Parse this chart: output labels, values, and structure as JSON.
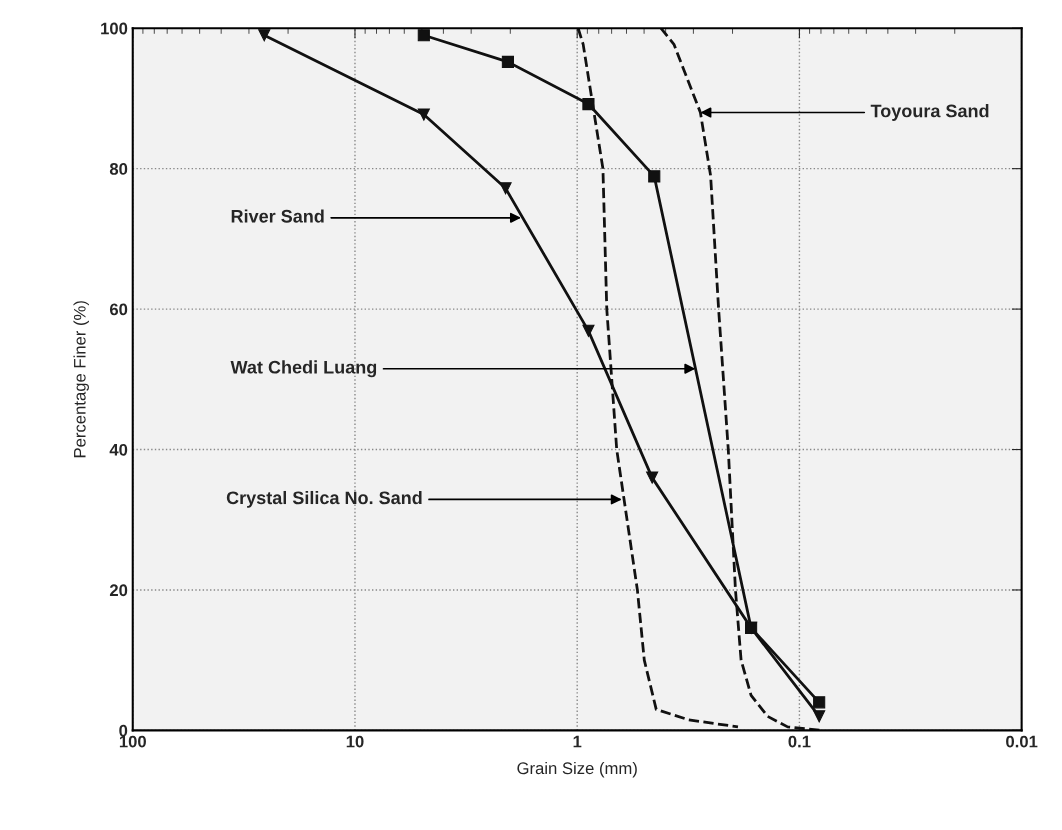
{
  "chart_data": {
    "type": "line",
    "xlabel": "Grain Size (mm)",
    "ylabel": "Percentage Finer (%)",
    "log": "x",
    "xlim": [
      100,
      0.01
    ],
    "xticks": [
      100,
      10,
      1,
      0.1,
      0.01
    ],
    "ylim": [
      0,
      100
    ],
    "yticks": [
      0,
      20,
      40,
      60,
      80,
      100
    ],
    "grid": true,
    "legend": false,
    "series": [
      {
        "color": "#111111",
        "marker": "triangle",
        "line_style": "solid",
        "x": [
          25.6,
          4.9,
          2.1,
          0.89,
          0.46,
          0.165,
          0.0815
        ],
        "values": [
          99,
          87.7,
          77.2,
          56.9,
          36,
          14.6,
          2
        ]
      },
      {
        "color": "#111111",
        "marker": "square",
        "line_style": "solid",
        "x": [
          4.9,
          2.05,
          0.89,
          0.45,
          0.165,
          0.0815
        ],
        "values": [
          99,
          95.2,
          89.2,
          78.9,
          14.6,
          4
        ]
      },
      {
        "color": "#111111",
        "marker": "none",
        "line_style": "dashed",
        "x": [
          0.99,
          0.94,
          0.766,
          0.736,
          0.664,
          0.536,
          0.499,
          0.441,
          0.315,
          0.189
        ],
        "values": [
          100,
          97.7,
          80,
          60,
          40,
          20,
          10,
          3,
          1.5,
          0.5
        ]
      },
      {
        "color": "#111111",
        "marker": "none",
        "line_style": "dashed",
        "x": [
          0.42,
          0.367,
          0.279,
          0.251,
          0.231,
          0.209,
          0.194,
          0.183,
          0.165,
          0.139,
          0.113,
          0.079
        ],
        "values": [
          100,
          97.7,
          88,
          79,
          60,
          40,
          20,
          10,
          5,
          2,
          0.5,
          0
        ]
      }
    ],
    "annotations": [
      {
        "text": "River Sand",
        "x": 1.79,
        "y": 73
      },
      {
        "text": "Wat Chedi Luang",
        "x": 0.294,
        "y": 51.5
      },
      {
        "text": "Crystal Silica No. Sand",
        "x": 0.63,
        "y": 32.9
      },
      {
        "text": "Toyoura Sand",
        "x": 0.279,
        "y": 88
      }
    ]
  }
}
